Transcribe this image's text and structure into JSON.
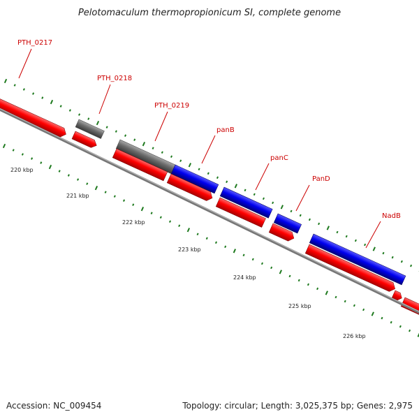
{
  "title": "Pelotomaculum thermopropionicum SI, complete genome",
  "colors": {
    "cds_forward": "#ff0000",
    "cds_shadow": "#ff0000",
    "gene_blue": "#0000ee",
    "gene_gray": "#666666",
    "backbone": "#888888",
    "label": "#cc0000",
    "tick": "#1f7a1f"
  },
  "genes": [
    {
      "id": "PTH_0217",
      "label": "PTH_0217"
    },
    {
      "id": "PTH_0218",
      "label": "PTH_0218"
    },
    {
      "id": "PTH_0219",
      "label": "PTH_0219"
    },
    {
      "id": "panB",
      "label": "panB"
    },
    {
      "id": "panC",
      "label": "panC"
    },
    {
      "id": "panD",
      "label": "PanD"
    },
    {
      "id": "nadB",
      "label": "NadB"
    }
  ],
  "ticks": [
    "220 kbp",
    "221 kbp",
    "222 kbp",
    "223 kbp",
    "224 kbp",
    "225 kbp",
    "226 kbp"
  ],
  "footer": {
    "accession": "Accession: NC_009454",
    "summary": "Topology: circular; Length: 3,025,375 bp; Genes: 2,975"
  }
}
